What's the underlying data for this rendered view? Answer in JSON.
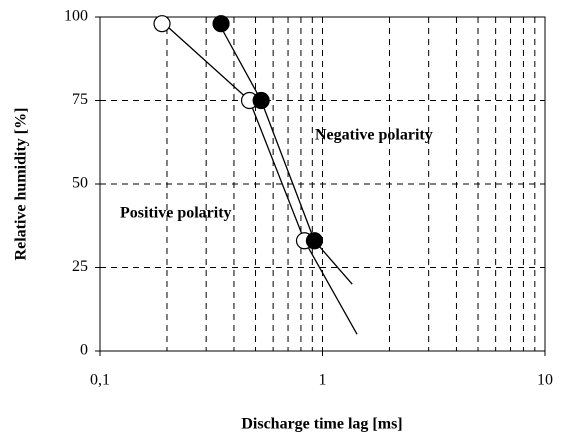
{
  "chart_data": {
    "type": "scatter",
    "xlabel": "Discharge time lag [ms]",
    "ylabel": "Relative humidity [%]",
    "xscale": "log",
    "xlim": [
      0.1,
      10
    ],
    "xticks": [
      {
        "value": 0.1,
        "label": "0,1"
      },
      1,
      10
    ],
    "xgrid": [
      0.2,
      0.3,
      0.4,
      0.5,
      0.6,
      0.7,
      0.8,
      0.9,
      2,
      3,
      4,
      5,
      6,
      7,
      8,
      9
    ],
    "ylim": [
      0,
      100
    ],
    "yticks": [
      0,
      25,
      50,
      75,
      100
    ],
    "grid": true,
    "series": [
      {
        "fill": "none",
        "color": "#000",
        "x": [
          0.19,
          0.47,
          0.83
        ],
        "values": [
          98,
          75,
          33
        ]
      },
      {
        "fill": "#000",
        "color": "#000",
        "x": [
          0.35,
          0.53,
          0.92
        ],
        "values": [
          98,
          75,
          33
        ]
      }
    ],
    "fits": [
      {
        "color": "#000",
        "x": [
          0.18,
          0.47,
          0.83,
          1.43
        ],
        "values": [
          100,
          75,
          33,
          5
        ]
      },
      {
        "color": "#000",
        "x": [
          0.33,
          0.53,
          0.92,
          1.36
        ],
        "values": [
          100,
          75,
          33,
          20
        ]
      }
    ],
    "annotations": [
      "Negative polarity",
      "Positive polarity"
    ]
  }
}
